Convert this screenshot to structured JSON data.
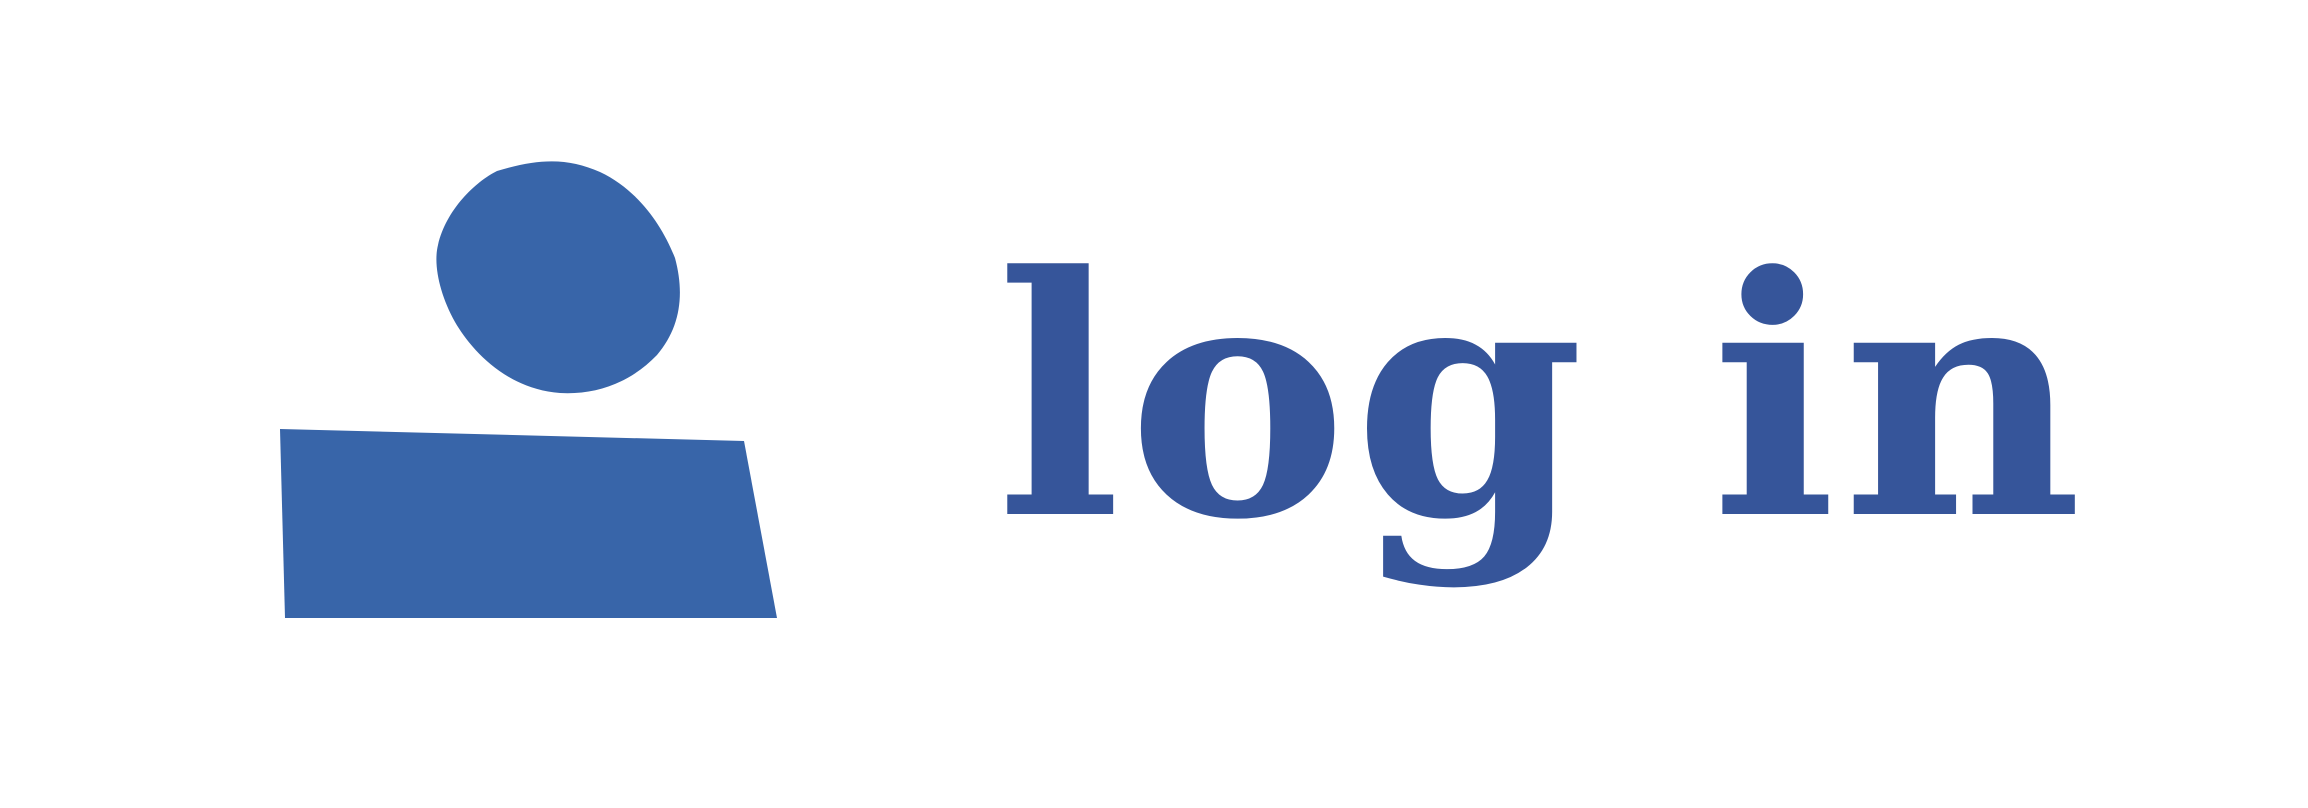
{
  "button": {
    "label": "log in",
    "icon": "user-icon"
  },
  "colors": {
    "icon": "#3865a9",
    "text": "#36559a",
    "background": "#ffffff"
  }
}
